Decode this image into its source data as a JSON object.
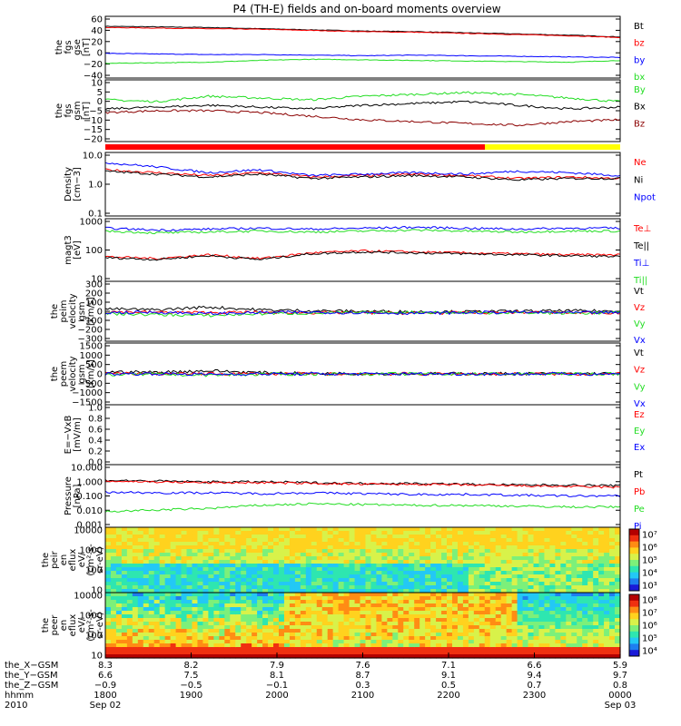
{
  "figure": {
    "title": "P4 (TH-E) fields and on-board moments overview"
  },
  "colors": {
    "black": "#000000",
    "red": "#ff0000",
    "green": "#22dd22",
    "blue": "#0000ff",
    "darkred": "#8b0000",
    "yellow": "#ffff00"
  },
  "chart_data": [
    {
      "id": "fgs_gse",
      "type": "line",
      "ylabel_lines": [
        "the",
        "fgs",
        "gse",
        "[nT]"
      ],
      "yticks": [
        "60",
        "40",
        "20",
        "0",
        "−20",
        "−40"
      ],
      "ylim": [
        -40,
        65
      ],
      "series": [
        {
          "name": "Bt",
          "color": "#000000",
          "values": [
            48,
            47,
            46,
            44,
            42,
            40,
            39,
            37,
            35,
            33,
            30
          ]
        },
        {
          "name": "bz",
          "color": "#ff0000",
          "values": [
            46,
            45,
            44,
            43,
            41,
            39,
            38,
            36,
            34,
            32,
            29
          ]
        },
        {
          "name": "by",
          "color": "#0000ff",
          "values": [
            2,
            1,
            0,
            0,
            -1,
            -2,
            -1,
            -2,
            -3,
            -4,
            -5
          ]
        },
        {
          "name": "bx",
          "color": "#22dd22",
          "values": [
            -15,
            -14,
            -13,
            -10,
            -8,
            -9,
            -10,
            -11,
            -12,
            -13,
            -10
          ]
        }
      ]
    },
    {
      "id": "fgs_gsm",
      "type": "line",
      "ylabel_lines": [
        "the",
        "fgs",
        "gsm",
        "[nT]"
      ],
      "yticks": [
        "10",
        "5",
        "0",
        "−5",
        "−10",
        "−15",
        "−20"
      ],
      "ylim": [
        -22,
        12
      ],
      "series": [
        {
          "name": "By",
          "color": "#22dd22",
          "values": [
            1,
            0,
            3,
            2,
            1,
            3,
            4,
            5,
            4,
            2,
            0
          ]
        },
        {
          "name": "Bx",
          "color": "#000000",
          "values": [
            -4,
            -3,
            -2,
            -3,
            -4,
            -2,
            -1,
            0,
            -2,
            -4,
            -3
          ]
        },
        {
          "name": "Bz",
          "color": "#8b0000",
          "values": [
            -6,
            -5,
            -5,
            -6,
            -8,
            -10,
            -11,
            -12,
            -13,
            -11,
            -10
          ]
        }
      ]
    },
    {
      "id": "density",
      "type": "line",
      "log": true,
      "ylabel_lines": [
        "Density",
        "[cm−3]"
      ],
      "yticks": [
        "10.0",
        "1.0",
        "0.1"
      ],
      "ylim_log": [
        -1,
        1.2
      ],
      "series": [
        {
          "name": "Ne",
          "color": "#ff0000",
          "values": [
            0.6,
            0.5,
            0.4,
            0.5,
            0.35,
            0.4,
            0.45,
            0.4,
            0.3,
            0.35,
            0.3
          ]
        },
        {
          "name": "Ni",
          "color": "#000000",
          "values": [
            0.55,
            0.45,
            0.35,
            0.45,
            0.3,
            0.35,
            0.4,
            0.35,
            0.25,
            0.3,
            0.3
          ]
        },
        {
          "name": "Npot",
          "color": "#0000ff",
          "values": [
            0.85,
            0.7,
            0.5,
            0.6,
            0.4,
            0.45,
            0.5,
            0.45,
            0.55,
            0.5,
            0.4
          ]
        }
      ]
    },
    {
      "id": "magt3",
      "type": "line",
      "log": true,
      "ylabel_lines": [
        "magt3",
        "[eV]"
      ],
      "yticks": [
        "1000",
        "100",
        "10"
      ],
      "ylim_log": [
        0.7,
        4.0
      ],
      "series": [
        {
          "name": "Te⊥",
          "color": "#ff0000",
          "values": [
            2.0,
            1.9,
            2.1,
            1.9,
            2.2,
            2.3,
            2.25,
            2.2,
            2.15,
            2.1,
            2.1
          ]
        },
        {
          "name": "Te||",
          "color": "#000000",
          "values": [
            1.95,
            1.85,
            2.05,
            1.85,
            2.15,
            2.25,
            2.2,
            2.15,
            2.1,
            2.05,
            2.0
          ]
        },
        {
          "name": "Ti⊥",
          "color": "#0000ff",
          "values": [
            3.5,
            3.4,
            3.45,
            3.5,
            3.45,
            3.5,
            3.55,
            3.5,
            3.45,
            3.5,
            3.5
          ]
        },
        {
          "name": "Ti||",
          "color": "#22dd22",
          "values": [
            3.35,
            3.25,
            3.3,
            3.35,
            3.3,
            3.35,
            3.4,
            3.35,
            3.3,
            3.35,
            3.35
          ]
        }
      ]
    },
    {
      "id": "peim_vel",
      "type": "line",
      "ylabel_lines": [
        "the",
        "peim",
        "velocity",
        "gsm",
        "[km/s]"
      ],
      "yticks": [
        "300",
        "200",
        "100",
        "0",
        "−100",
        "−200",
        "−300"
      ],
      "ylim": [
        -300,
        330
      ],
      "series": [
        {
          "name": "Vt",
          "color": "#000000",
          "values": [
            40,
            30,
            60,
            30,
            20,
            15,
            10,
            10,
            15,
            20,
            15
          ]
        },
        {
          "name": "Vz",
          "color": "#ff0000",
          "values": [
            10,
            5,
            0,
            5,
            0,
            0,
            -5,
            0,
            5,
            0,
            0
          ]
        },
        {
          "name": "Vy",
          "color": "#22dd22",
          "values": [
            -10,
            -20,
            -30,
            -10,
            -5,
            0,
            5,
            0,
            0,
            -5,
            0
          ]
        },
        {
          "name": "Vx",
          "color": "#0000ff",
          "values": [
            0,
            5,
            -10,
            0,
            5,
            0,
            -5,
            0,
            5,
            0,
            0
          ]
        }
      ]
    },
    {
      "id": "peem_vel",
      "type": "line",
      "ylabel_lines": [
        "the",
        "peem",
        "velocity",
        "gsm",
        "[km/s]"
      ],
      "yticks": [
        "1500",
        "1000",
        "500",
        "0",
        "−500",
        "−1000",
        "−1500"
      ],
      "ylim": [
        -1500,
        1500
      ],
      "series": [
        {
          "name": "Vt",
          "color": "#000000",
          "values": [
            100,
            80,
            150,
            60,
            20,
            15,
            10,
            10,
            10,
            15,
            10
          ]
        },
        {
          "name": "Vz",
          "color": "#ff0000",
          "values": [
            20,
            10,
            0,
            10,
            0,
            0,
            0,
            0,
            0,
            0,
            0
          ]
        },
        {
          "name": "Vy",
          "color": "#22dd22",
          "values": [
            -30,
            -20,
            -60,
            -20,
            0,
            0,
            0,
            0,
            0,
            0,
            0
          ]
        },
        {
          "name": "Vx",
          "color": "#0000ff",
          "values": [
            0,
            10,
            -20,
            0,
            0,
            0,
            0,
            0,
            0,
            0,
            0
          ]
        }
      ]
    },
    {
      "id": "exb",
      "type": "line",
      "ylabel_lines": [
        "E=−VxB",
        "[mV/m]"
      ],
      "yticks": [
        "1.0",
        "0.8",
        "0.6",
        "0.4",
        "0.2",
        "0.0"
      ],
      "ylim": [
        0,
        1.0
      ],
      "series": [
        {
          "name": "Ez",
          "color": "#ff0000",
          "values": []
        },
        {
          "name": "Ey",
          "color": "#22dd22",
          "values": []
        },
        {
          "name": "Ex",
          "color": "#0000ff",
          "values": []
        }
      ]
    },
    {
      "id": "pressure",
      "type": "line",
      "log": true,
      "ylabel_lines": [
        "Pressure",
        "[nPa]"
      ],
      "yticks": [
        "10.000",
        "1.000",
        "0.100",
        "0.010",
        "0.001"
      ],
      "ylim_log": [
        -3,
        1
      ],
      "series": [
        {
          "name": "Pt",
          "color": "#000000",
          "values": [
            0.0,
            -0.05,
            -0.1,
            -0.1,
            -0.15,
            -0.2,
            -0.2,
            -0.25,
            -0.3,
            -0.3,
            -0.35
          ]
        },
        {
          "name": "Pb",
          "color": "#ff0000",
          "values": [
            -0.05,
            -0.1,
            -0.15,
            -0.15,
            -0.2,
            -0.25,
            -0.25,
            -0.3,
            -0.35,
            -0.4,
            -0.45
          ]
        },
        {
          "name": "Pe",
          "color": "#22dd22",
          "values": [
            -2.0,
            -1.9,
            -1.8,
            -1.6,
            -1.5,
            -1.55,
            -1.6,
            -1.6,
            -1.65,
            -1.7,
            -1.7
          ]
        },
        {
          "name": "Pi",
          "color": "#0000ff",
          "values": [
            -0.75,
            -0.8,
            -0.8,
            -0.85,
            -0.8,
            -0.85,
            -0.9,
            -0.9,
            -0.95,
            -1.0,
            -1.0
          ]
        }
      ]
    },
    {
      "id": "peir_spec",
      "type": "heatmap",
      "ylabel_lines": [
        "the",
        "peir",
        "en",
        "eflux",
        "eV/",
        "(cm²-s-",
        "sr-eV)"
      ],
      "yticks": [
        "10000",
        "1000",
        "100",
        "10"
      ],
      "colorbar_ticks": [
        "10⁷",
        "10⁶",
        "10⁵",
        "10⁴",
        "10³"
      ]
    },
    {
      "id": "peer_spec",
      "type": "heatmap",
      "ylabel_lines": [
        "the",
        "peer",
        "en",
        "eflux",
        "eV/",
        "(cm²-s-",
        "sr-eV)"
      ],
      "yticks": [
        "10000",
        "1000",
        "100",
        "10"
      ],
      "colorbar_ticks": [
        "10⁸",
        "10⁷",
        "10⁶",
        "10⁵",
        "10⁴"
      ]
    }
  ],
  "x_axis": {
    "row_labels": [
      "the_X−GSM",
      "the_Y−GSM",
      "the_Z−GSM",
      "hhmm",
      "2010"
    ],
    "ticks": [
      {
        "values": [
          "8.3",
          "6.6",
          "−0.9",
          "1800",
          "Sep 02"
        ]
      },
      {
        "values": [
          "8.2",
          "7.5",
          "−0.5",
          "1900",
          ""
        ]
      },
      {
        "values": [
          "7.9",
          "8.1",
          "−0.1",
          "2000",
          ""
        ]
      },
      {
        "values": [
          "7.6",
          "8.7",
          "0.3",
          "2100",
          ""
        ]
      },
      {
        "values": [
          "7.1",
          "9.1",
          "0.5",
          "2200",
          ""
        ]
      },
      {
        "values": [
          "6.6",
          "9.4",
          "0.7",
          "2300",
          ""
        ]
      },
      {
        "values": [
          "5.9",
          "9.7",
          "0.8",
          "0000",
          "Sep 03"
        ]
      }
    ]
  }
}
